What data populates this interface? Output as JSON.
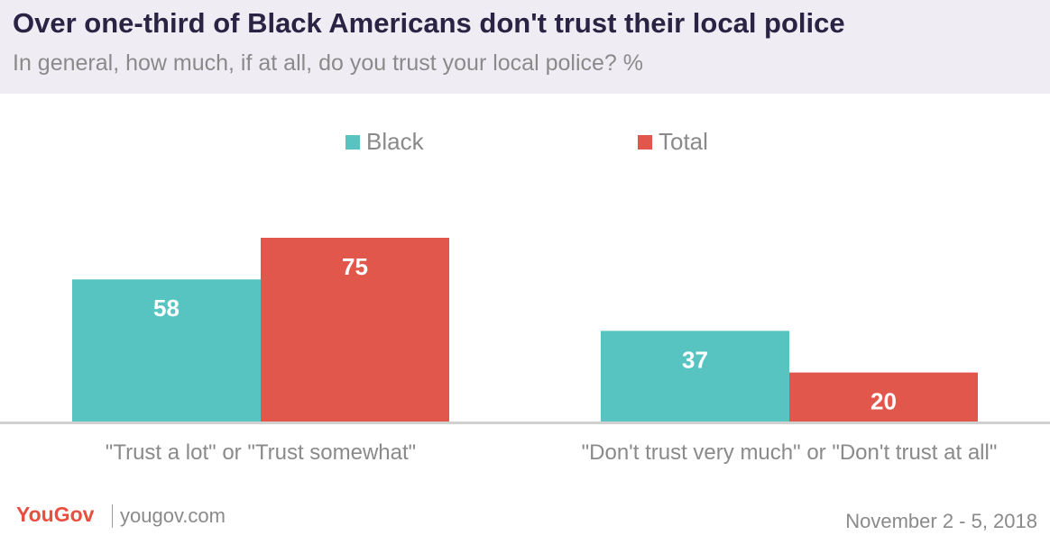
{
  "header": {
    "title": "Over one-third of Black Americans don't trust their local police",
    "subtitle": "In general, how much, if at all, do you trust your local police? %"
  },
  "chart_data": {
    "type": "bar",
    "categories": [
      "\"Trust a lot\" or \"Trust somewhat\"",
      "\"Don't trust very much\" or \"Don't trust at all\""
    ],
    "series": [
      {
        "name": "Black",
        "values": [
          58,
          37
        ],
        "color": "#57c4c2"
      },
      {
        "name": "Total",
        "values": [
          75,
          20
        ],
        "color": "#e2574c"
      }
    ],
    "ylim": [
      0,
      80
    ],
    "legend": "top-center",
    "grid": false,
    "data_labels": true
  },
  "footer": {
    "brand": "YouGov",
    "site": "yougov.com",
    "date": "November 2 - 5, 2018"
  }
}
